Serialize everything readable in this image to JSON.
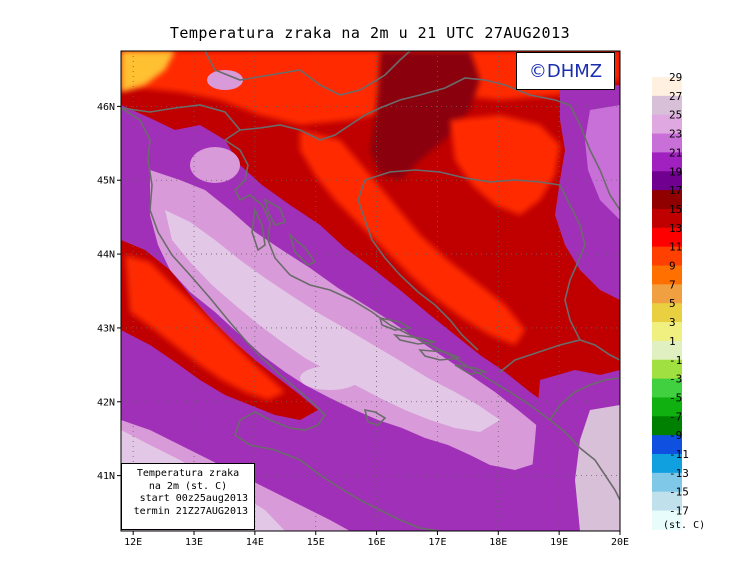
{
  "title": "Temperatura zraka na 2m u 21 UTC 27AUG2013",
  "logo_text": "©DHMZ",
  "info_box": {
    "line1": "Temperatura zraka",
    "line2": "na 2m (st. C)",
    "line3": "start 00z25aug2013",
    "line4": "termin 21Z27AUG2013"
  },
  "axes": {
    "lat_labels": [
      "46N",
      "45N",
      "44N",
      "43N",
      "42N",
      "41N"
    ],
    "lat_values": [
      46,
      45,
      44,
      43,
      42,
      41
    ],
    "lon_labels": [
      "12E",
      "13E",
      "14E",
      "15E",
      "16E",
      "17E",
      "18E",
      "19E",
      "20E"
    ],
    "lon_values": [
      12,
      13,
      14,
      15,
      16,
      17,
      18,
      19,
      20
    ],
    "lon_range": [
      11.8,
      20.0
    ],
    "lat_range": [
      40.25,
      46.75
    ]
  },
  "colorbar": {
    "units": "(st. C)",
    "labels": [
      "29",
      "27",
      "25",
      "23",
      "21",
      "19",
      "17",
      "15",
      "13",
      "11",
      "9",
      "7",
      "5",
      "3",
      "1",
      "-1",
      "-3",
      "-5",
      "-7",
      "-9",
      "-11",
      "-13",
      "-15",
      "-17"
    ],
    "colors": [
      "#fff0e0",
      "#d8c0d8",
      "#e0a8e0",
      "#c870d8",
      "#a020c0",
      "#700090",
      "#900000",
      "#c00000",
      "#ff0000",
      "#ff4000",
      "#ff7000",
      "#f0a040",
      "#e8d040",
      "#f0f080",
      "#e0f0c0",
      "#a0e040",
      "#40d040",
      "#10b010",
      "#008000",
      "#1050e0",
      "#10a0e0",
      "#80c8e8",
      "#c0e0ec",
      "#e8fcfc"
    ]
  },
  "field_colors": {
    "warm_land": "#cc0000",
    "hot_land": "#ff2a00",
    "mountain": "#8a0010",
    "sea_coast": "#a030b8",
    "sea_open": "#d89ad8",
    "sea_pale": "#e2c8e6",
    "hotspot": "#ffc030"
  }
}
